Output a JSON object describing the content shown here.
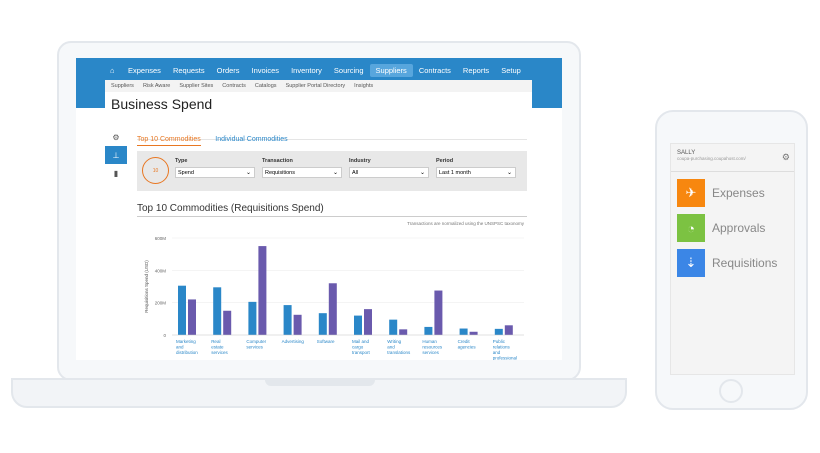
{
  "nav": {
    "items": [
      "Expenses",
      "Requests",
      "Orders",
      "Invoices",
      "Inventory",
      "Sourcing",
      "Suppliers",
      "Contracts",
      "Reports",
      "Setup"
    ],
    "active": "Suppliers"
  },
  "subnav": [
    "Suppliers",
    "Risk Aware",
    "Supplier Sites",
    "Contracts",
    "Catalogs",
    "Supplier Portal Directory",
    "Insights"
  ],
  "page_title": "Business Spend",
  "tabs": [
    "Top 10 Commodities",
    "Individual Commodities"
  ],
  "filters": [
    {
      "label": "Type",
      "value": "Spend"
    },
    {
      "label": "Transaction",
      "value": "Requisitions"
    },
    {
      "label": "Industry",
      "value": "All"
    },
    {
      "label": "Period",
      "value": "Last 1 month"
    }
  ],
  "filter_icon_text": "10",
  "chart_data": {
    "type": "bar",
    "title": "Top 10 Commodities (Requisitions Spend)",
    "note": "Transactions are normalized using the UNSPSC taxonomy",
    "ylabel": "Requisitions Spend (USD)",
    "ylim": [
      0,
      600
    ],
    "yticks": [
      "0",
      "200M",
      "400M",
      "600M"
    ],
    "grid": true,
    "categories": [
      "Marketing and distribution",
      "Real estate services",
      "Computer services",
      "Advertising",
      "Software",
      "Mail and cargo transport",
      "Writing and translations",
      "Human resources services",
      "Credit agencies",
      "Public relations and professional communications"
    ],
    "series": [
      {
        "values": [
          305,
          295,
          205,
          185,
          135,
          120,
          95,
          50,
          40,
          38
        ],
        "color": "#2a87c8"
      },
      {
        "values": [
          220,
          150,
          550,
          125,
          320,
          160,
          35,
          275,
          20,
          60
        ],
        "color": "#6a5aad"
      }
    ]
  },
  "phone": {
    "user": "SALLY",
    "host": "coupa-purchasing.coupahost.com/",
    "items": [
      {
        "label": "Expenses",
        "color": "#f7870f",
        "icon": "airplane-icon"
      },
      {
        "label": "Approvals",
        "color": "#7cc242",
        "icon": "timer-icon"
      },
      {
        "label": "Requisitions",
        "color": "#3b86e6",
        "icon": "cart-icon"
      }
    ]
  }
}
